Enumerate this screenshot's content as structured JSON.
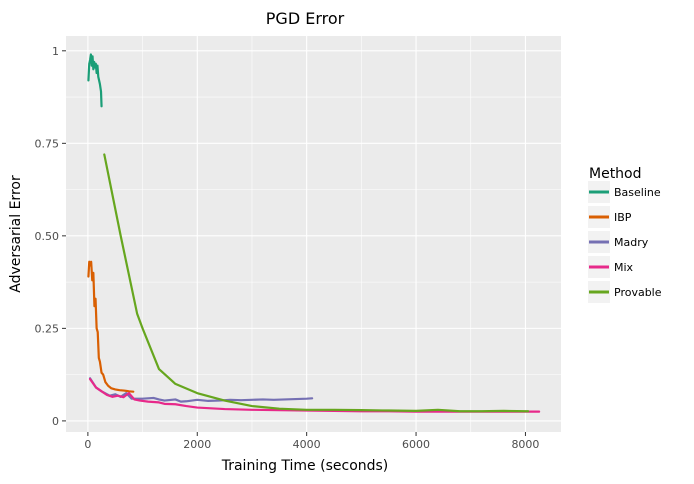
{
  "chart_data": {
    "type": "line",
    "title": "PGD Error",
    "xlabel": "Training Time (seconds)",
    "ylabel": "Adversarial Error",
    "xlim": [
      -400,
      8650
    ],
    "ylim": [
      -0.03,
      1.04
    ],
    "xticks": [
      0,
      2000,
      4000,
      6000,
      8000
    ],
    "xtick_labels": [
      "0",
      "2000",
      "4000",
      "6000",
      "8000"
    ],
    "yticks": [
      0,
      0.25,
      0.5,
      0.75,
      1
    ],
    "ytick_labels": [
      "0",
      "0.25",
      "0.50",
      "0.75",
      "1"
    ],
    "grid": true,
    "legend": {
      "title": "Method",
      "position": "right"
    },
    "series": [
      {
        "name": "Baseline",
        "color": "#1b9e77",
        "x": [
          10,
          25,
          40,
          55,
          70,
          85,
          100,
          115,
          130,
          145,
          160,
          175,
          190,
          205,
          220,
          240,
          250
        ],
        "y": [
          0.92,
          0.965,
          0.975,
          0.99,
          0.96,
          0.985,
          0.95,
          0.97,
          0.955,
          0.965,
          0.94,
          0.96,
          0.93,
          0.92,
          0.91,
          0.89,
          0.85
        ]
      },
      {
        "name": "IBP",
        "color": "#d95f02",
        "x": [
          10,
          25,
          40,
          60,
          80,
          100,
          120,
          140,
          160,
          180,
          200,
          220,
          250,
          280,
          320,
          370,
          430,
          500,
          580,
          660,
          750,
          830
        ],
        "y": [
          0.39,
          0.43,
          0.42,
          0.43,
          0.38,
          0.4,
          0.31,
          0.33,
          0.25,
          0.24,
          0.17,
          0.16,
          0.13,
          0.125,
          0.105,
          0.095,
          0.088,
          0.085,
          0.083,
          0.082,
          0.08,
          0.079
        ]
      },
      {
        "name": "Madry",
        "color": "#7570b3",
        "x": [
          40,
          150,
          250,
          400,
          500,
          600,
          700,
          800,
          1000,
          1200,
          1300,
          1400,
          1600,
          1700,
          1800,
          2000,
          2200,
          2400,
          2600,
          2800,
          3000,
          3200,
          3400,
          3600,
          3800,
          4000,
          4100
        ],
        "y": [
          0.115,
          0.09,
          0.08,
          0.068,
          0.072,
          0.065,
          0.075,
          0.06,
          0.06,
          0.062,
          0.058,
          0.055,
          0.058,
          0.052,
          0.053,
          0.057,
          0.054,
          0.055,
          0.057,
          0.056,
          0.057,
          0.058,
          0.057,
          0.058,
          0.059,
          0.06,
          0.061
        ]
      },
      {
        "name": "Mix",
        "color": "#e7298a",
        "x": [
          40,
          150,
          250,
          350,
          450,
          550,
          650,
          750,
          850,
          950,
          1100,
          1300,
          1400,
          1600,
          1800,
          2000,
          2500,
          3000,
          3500,
          4000,
          4500,
          5000,
          5500,
          6000,
          6500,
          7000,
          7500,
          8000,
          8250
        ],
        "y": [
          0.113,
          0.09,
          0.08,
          0.07,
          0.065,
          0.068,
          0.064,
          0.075,
          0.058,
          0.055,
          0.052,
          0.05,
          0.046,
          0.045,
          0.04,
          0.036,
          0.032,
          0.03,
          0.029,
          0.028,
          0.027,
          0.026,
          0.026,
          0.025,
          0.025,
          0.025,
          0.025,
          0.025,
          0.025
        ]
      },
      {
        "name": "Provable",
        "color": "#66a61e",
        "x": [
          300,
          600,
          900,
          1000,
          1300,
          1600,
          2000,
          2500,
          3000,
          3500,
          4000,
          4500,
          5000,
          5500,
          6000,
          6400,
          6800,
          7200,
          7600,
          8000,
          8050
        ],
        "y": [
          0.72,
          0.5,
          0.29,
          0.25,
          0.14,
          0.1,
          0.075,
          0.055,
          0.04,
          0.033,
          0.03,
          0.03,
          0.029,
          0.028,
          0.027,
          0.03,
          0.026,
          0.026,
          0.027,
          0.026,
          0.026
        ]
      }
    ]
  }
}
